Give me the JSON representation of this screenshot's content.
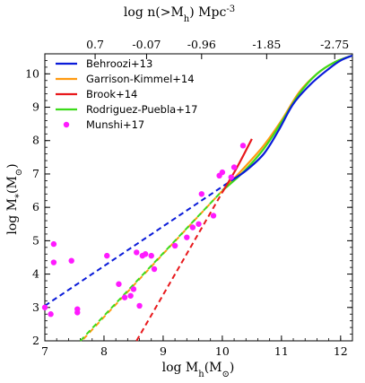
{
  "chart_data": {
    "type": "line",
    "xlabel": "log M_h(M_⊙)",
    "ylabel": "log M_*(M_⊙)",
    "top_xlabel": "log n(>M_h) Mpc^-3",
    "xlim": [
      7.0,
      12.2
    ],
    "ylim": [
      2.0,
      10.6
    ],
    "grid": false,
    "legend_placement": "top-left",
    "x_ticks": [
      7,
      8,
      9,
      10,
      11,
      12
    ],
    "y_ticks": [
      2,
      3,
      4,
      5,
      6,
      7,
      8,
      9,
      10
    ],
    "top_ticks": [
      {
        "x": 7.85,
        "label": "0.7"
      },
      {
        "x": 8.72,
        "label": "-0.07"
      },
      {
        "x": 9.65,
        "label": "-0.96"
      },
      {
        "x": 10.75,
        "label": "-1.85"
      },
      {
        "x": 11.9,
        "label": "-2.75"
      }
    ],
    "series": [
      {
        "name": "Behroozi+13",
        "color": "#0a1bd9",
        "solid": [
          [
            10.15,
            6.8
          ],
          [
            10.4,
            7.1
          ],
          [
            10.7,
            7.6
          ],
          [
            10.95,
            8.3
          ],
          [
            11.2,
            9.1
          ],
          [
            11.5,
            9.7
          ],
          [
            11.8,
            10.15
          ],
          [
            12.0,
            10.4
          ],
          [
            12.2,
            10.55
          ]
        ],
        "dashed": [
          [
            7.0,
            3.05
          ],
          [
            10.15,
            6.8
          ]
        ]
      },
      {
        "name": "Garrison-Kimmel+14",
        "color": "#ff9a10",
        "solid": [
          [
            10.0,
            6.5
          ],
          [
            10.35,
            7.15
          ],
          [
            10.7,
            7.85
          ],
          [
            11.0,
            8.6
          ],
          [
            11.3,
            9.45
          ],
          [
            11.6,
            10.0
          ],
          [
            11.9,
            10.35
          ],
          [
            12.2,
            10.55
          ]
        ],
        "dashed": [
          [
            7.65,
            2.05
          ],
          [
            10.0,
            6.5
          ]
        ]
      },
      {
        "name": "Brook+14",
        "color": "#e8181c",
        "solid": [
          [
            10.0,
            6.45
          ],
          [
            10.25,
            7.2
          ],
          [
            10.5,
            8.05
          ]
        ],
        "dashed": [
          [
            8.55,
            2.0
          ],
          [
            10.0,
            6.45
          ]
        ]
      },
      {
        "name": "Rodriguez-Puebla+17",
        "color": "#3cdb1a",
        "solid": [
          [
            10.0,
            6.5
          ],
          [
            10.35,
            7.05
          ],
          [
            10.7,
            7.75
          ],
          [
            11.0,
            8.55
          ],
          [
            11.3,
            9.4
          ],
          [
            11.6,
            10.0
          ],
          [
            11.9,
            10.35
          ],
          [
            12.2,
            10.55
          ]
        ],
        "dashed": [
          [
            7.6,
            2.0
          ],
          [
            10.0,
            6.5
          ]
        ]
      }
    ],
    "scatter": {
      "name": "Munshi+17",
      "color": "#ff1aff",
      "points": [
        [
          7.0,
          3.0
        ],
        [
          7.1,
          2.8
        ],
        [
          7.15,
          4.9
        ],
        [
          7.15,
          4.35
        ],
        [
          7.45,
          4.4
        ],
        [
          7.55,
          2.95
        ],
        [
          7.55,
          2.85
        ],
        [
          8.05,
          4.55
        ],
        [
          8.25,
          3.7
        ],
        [
          8.35,
          3.3
        ],
        [
          8.45,
          3.35
        ],
        [
          8.5,
          3.55
        ],
        [
          8.55,
          4.65
        ],
        [
          8.6,
          3.05
        ],
        [
          8.65,
          4.55
        ],
        [
          8.7,
          4.6
        ],
        [
          8.8,
          4.55
        ],
        [
          8.85,
          4.15
        ],
        [
          9.2,
          4.85
        ],
        [
          9.4,
          5.1
        ],
        [
          9.5,
          5.4
        ],
        [
          9.6,
          5.5
        ],
        [
          9.65,
          6.4
        ],
        [
          9.85,
          5.75
        ],
        [
          9.95,
          6.95
        ],
        [
          10.0,
          7.05
        ],
        [
          10.15,
          6.9
        ],
        [
          10.2,
          7.2
        ],
        [
          10.35,
          7.85
        ]
      ]
    },
    "legend": [
      {
        "label": "Behroozi+13",
        "color": "#0a1bd9",
        "kind": "line"
      },
      {
        "label": "Garrison-Kimmel+14",
        "color": "#ff9a10",
        "kind": "line"
      },
      {
        "label": "Brook+14",
        "color": "#e8181c",
        "kind": "line"
      },
      {
        "label": "Rodriguez-Puebla+17",
        "color": "#3cdb1a",
        "kind": "line"
      },
      {
        "label": "Munshi+17",
        "color": "#ff1aff",
        "kind": "marker"
      }
    ]
  }
}
